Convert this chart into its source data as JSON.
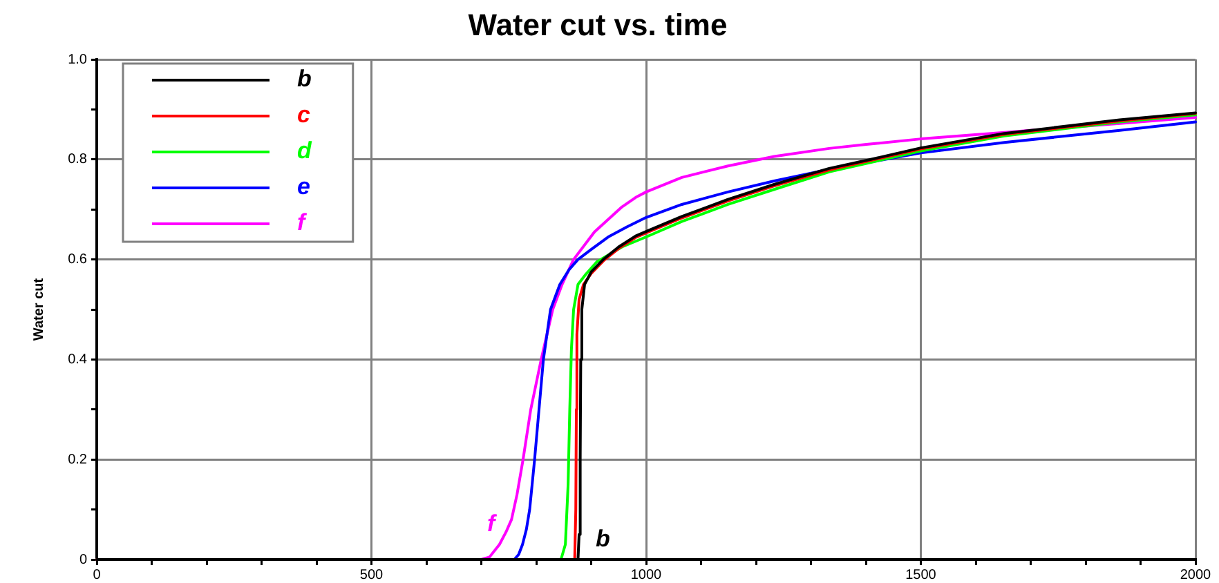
{
  "chart_data": {
    "type": "line",
    "title": "Water cut vs. time",
    "ylabel": "Water cut",
    "xlim": [
      0,
      2000
    ],
    "ylim": [
      0,
      1
    ],
    "xticks": [
      0,
      {
        "value": 100,
        "label": null
      },
      {
        "value": 200,
        "label": null
      },
      {
        "value": 300,
        "label": null
      },
      {
        "value": 400,
        "label": null
      },
      500,
      {
        "value": 600,
        "label": null
      },
      {
        "value": 700,
        "label": null
      },
      {
        "value": 800,
        "label": null
      },
      {
        "value": 900,
        "label": null
      },
      1000,
      {
        "value": 1100,
        "label": null
      },
      {
        "value": 1200,
        "label": null
      },
      {
        "value": 1300,
        "label": null
      },
      {
        "value": 1400,
        "label": null
      },
      1500,
      {
        "value": 1600,
        "label": null
      },
      {
        "value": 1700,
        "label": null
      },
      {
        "value": 1800,
        "label": null
      },
      {
        "value": 1900,
        "label": null
      },
      2000
    ],
    "yticks": [
      0,
      {
        "value": 0.1,
        "label": null
      },
      0.2,
      {
        "value": 0.3,
        "label": null
      },
      0.4,
      {
        "value": 0.5,
        "label": null
      },
      0.6,
      {
        "value": 0.7,
        "label": null
      },
      0.8,
      {
        "value": 0.9,
        "label": null
      },
      {
        "value": 1,
        "label": "1.0"
      }
    ],
    "grid": true,
    "legend": "top left",
    "series": [
      {
        "name": "b",
        "color": "#000000",
        "x": [
          0,
          700,
          876,
          878,
          880,
          881,
          883,
          888,
          900,
          922,
          950,
          981,
          1000,
          1065,
          1149,
          1233,
          1333,
          1409,
          1500,
          1652,
          1862,
          2000
        ],
        "values": [
          0,
          0,
          0,
          0.05,
          0.2,
          0.4,
          0.5,
          0.55,
          0.575,
          0.6,
          0.625,
          0.647,
          0.656,
          0.686,
          0.72,
          0.75,
          0.782,
          0.8,
          0.823,
          0.852,
          0.879,
          0.893
        ]
      },
      {
        "name": "c",
        "color": "#ff0000",
        "x": [
          0,
          700,
          870,
          872,
          873,
          874,
          878,
          886,
          900,
          922,
          950,
          981,
          1000,
          1065,
          1149,
          1233,
          1333,
          1500,
          1652,
          1862,
          2000
        ],
        "values": [
          0,
          0,
          0,
          0.1,
          0.3,
          0.45,
          0.52,
          0.55,
          0.572,
          0.597,
          0.622,
          0.644,
          0.653,
          0.683,
          0.717,
          0.747,
          0.779,
          0.821,
          0.85,
          0.877,
          0.892
        ]
      },
      {
        "name": "d",
        "color": "#00ff00",
        "x": [
          0,
          700,
          845,
          853,
          858,
          861,
          864,
          868,
          876,
          890,
          910,
          956,
          1000,
          1065,
          1149,
          1233,
          1333,
          1500,
          1652,
          1862,
          2000
        ],
        "values": [
          0,
          0,
          0,
          0.03,
          0.15,
          0.3,
          0.42,
          0.5,
          0.55,
          0.57,
          0.595,
          0.625,
          0.645,
          0.676,
          0.71,
          0.74,
          0.775,
          0.817,
          0.847,
          0.875,
          0.889
        ]
      },
      {
        "name": "e",
        "color": "#0000ff",
        "x": [
          0,
          760,
          768,
          775,
          782,
          788,
          797,
          805,
          813,
          826,
          843,
          860,
          876,
          900,
          931,
          965,
          1000,
          1065,
          1149,
          1233,
          1333,
          1500,
          1652,
          1862,
          2000
        ],
        "values": [
          0,
          0,
          0.01,
          0.03,
          0.06,
          0.1,
          0.2,
          0.3,
          0.4,
          0.5,
          0.55,
          0.58,
          0.6,
          0.62,
          0.645,
          0.665,
          0.684,
          0.71,
          0.735,
          0.757,
          0.78,
          0.813,
          0.834,
          0.858,
          0.875
        ]
      },
      {
        "name": "f",
        "color": "#ff00ff",
        "x": [
          0,
          700,
          715,
          733,
          745,
          755,
          765,
          776,
          790,
          809,
          830,
          847,
          868,
          906,
          956,
          981,
          1000,
          1065,
          1149,
          1233,
          1333,
          1401,
          1500,
          1652,
          1862,
          2000
        ],
        "values": [
          0,
          0,
          0.005,
          0.03,
          0.055,
          0.08,
          0.13,
          0.2,
          0.3,
          0.4,
          0.5,
          0.55,
          0.6,
          0.655,
          0.705,
          0.724,
          0.735,
          0.764,
          0.787,
          0.806,
          0.822,
          0.83,
          0.841,
          0.854,
          0.872,
          0.884
        ]
      }
    ],
    "annotations": [
      {
        "text": "f",
        "x": 755,
        "y": 0.08
      },
      {
        "text": "b",
        "x": 878,
        "y": 0.05
      }
    ]
  }
}
